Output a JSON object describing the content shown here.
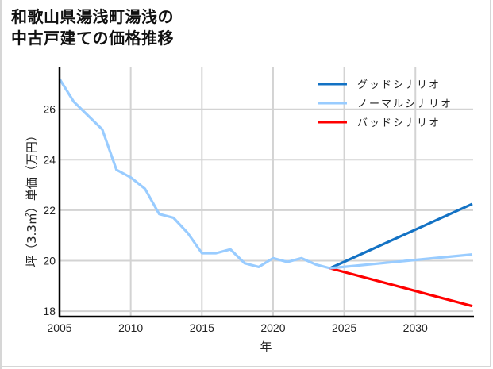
{
  "title": {
    "line1": "和歌山県湯浅町湯浅の",
    "line2": "中古戸建ての価格推移"
  },
  "axes": {
    "xlabel": "年",
    "ylabel": "坪（3.3㎡）単価（万円）",
    "xticks": [
      "2005",
      "2010",
      "2015",
      "2020",
      "2025",
      "2030"
    ],
    "yticks": [
      "18",
      "20",
      "22",
      "24",
      "26"
    ]
  },
  "legend": {
    "good": "グッドシナリオ",
    "normal": "ノーマルシナリオ",
    "bad": "バッドシナリオ"
  },
  "colors": {
    "good": "#1372c4",
    "normal": "#99ccff",
    "bad": "#ff0000",
    "grid": "#d3d3d3"
  },
  "chart_data": {
    "type": "line",
    "title": "和歌山県湯浅町湯浅の中古戸建ての価格推移",
    "xlabel": "年",
    "ylabel": "坪（3.3㎡）単価（万円）",
    "xlim": [
      2005,
      2034
    ],
    "ylim": [
      17.8,
      27.3
    ],
    "grid": true,
    "legend_position": "upper right",
    "series": [
      {
        "name": "ノーマルシナリオ (実績)",
        "color": "#99ccff",
        "x": [
          2005,
          2006,
          2007,
          2008,
          2009,
          2010,
          2011,
          2012,
          2013,
          2014,
          2015,
          2016,
          2017,
          2018,
          2019,
          2020,
          2021,
          2022,
          2023,
          2024
        ],
        "values": [
          27.2,
          26.3,
          25.75,
          25.2,
          23.6,
          23.3,
          22.85,
          21.85,
          21.7,
          21.1,
          20.3,
          20.3,
          20.45,
          19.9,
          19.75,
          20.1,
          19.95,
          20.1,
          19.85,
          19.7
        ]
      },
      {
        "name": "グッドシナリオ",
        "color": "#1372c4",
        "x": [
          2024,
          2034
        ],
        "values": [
          19.7,
          22.25
        ]
      },
      {
        "name": "ノーマルシナリオ",
        "color": "#99ccff",
        "x": [
          2024,
          2034
        ],
        "values": [
          19.7,
          20.25
        ]
      },
      {
        "name": "バッドシナリオ",
        "color": "#ff0000",
        "x": [
          2024,
          2034
        ],
        "values": [
          19.7,
          18.2
        ]
      }
    ]
  }
}
